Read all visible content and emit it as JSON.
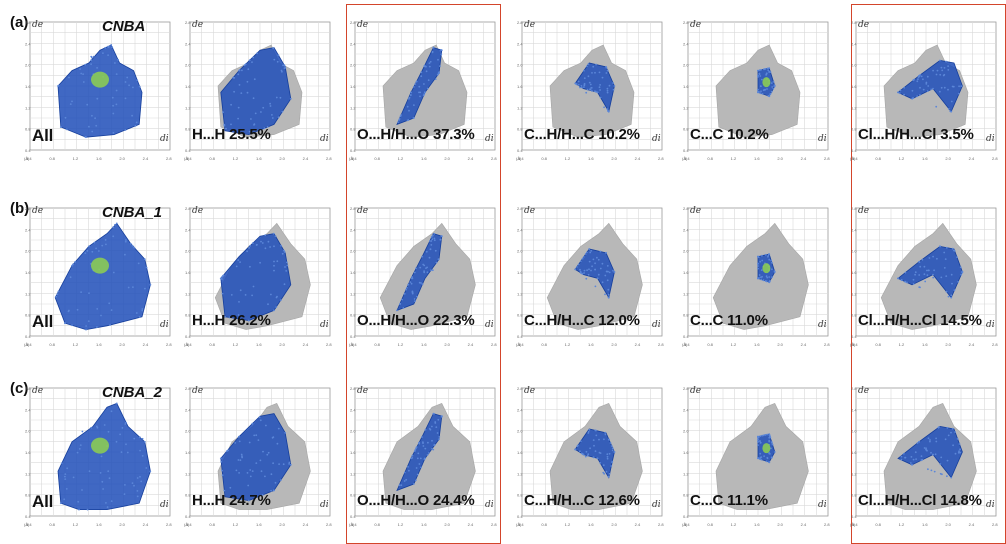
{
  "colors": {
    "frame": "#d3452b",
    "grid": "#d9d9d9",
    "cloud": "#b8b8b8",
    "highlight": "#1f4eb8",
    "hot": "#8fd14f"
  },
  "axis": {
    "x_label": "di",
    "y_label": "de",
    "x_ticks": [
      "0.4",
      "0.6",
      "0.8",
      "1.0",
      "1.2",
      "1.4",
      "1.6",
      "1.8",
      "2.0",
      "2.2",
      "2.4",
      "2.6",
      "2.8"
    ],
    "y_ticks": [
      "2.8",
      "2.6",
      "2.4",
      "2.2",
      "2.0",
      "1.8",
      "1.6",
      "1.4",
      "1.2",
      "1.0",
      "0.8",
      "0.6",
      "0.4"
    ],
    "corner": "(Å)"
  },
  "rows": [
    {
      "tag": "(a)",
      "name": "CNBA",
      "panels": [
        {
          "label": "All",
          "contact": "All",
          "percent": null
        },
        {
          "label": "H...H 25.5%",
          "contact": "H...H",
          "percent": 25.5
        },
        {
          "label": "O...H/H...O 37.3%",
          "contact": "O...H/H...O",
          "percent": 37.3
        },
        {
          "label": "C...H/H...C 10.2%",
          "contact": "C...H/H...C",
          "percent": 10.2
        },
        {
          "label": "C...C 10.2%",
          "contact": "C...C",
          "percent": 10.2
        },
        {
          "label": "Cl...H/H...Cl 3.5%",
          "contact": "Cl...H/H...Cl",
          "percent": 3.5
        }
      ]
    },
    {
      "tag": "(b)",
      "name": "CNBA_1",
      "panels": [
        {
          "label": "All",
          "contact": "All",
          "percent": null
        },
        {
          "label": "H...H 26.2%",
          "contact": "H...H",
          "percent": 26.2
        },
        {
          "label": "O...H/H...O 22.3%",
          "contact": "O...H/H...O",
          "percent": 22.3
        },
        {
          "label": "C...H/H...C 12.0%",
          "contact": "C...H/H...C",
          "percent": 12.0
        },
        {
          "label": "C...C 11.0%",
          "contact": "C...C",
          "percent": 11.0
        },
        {
          "label": "Cl...H/H...Cl 14.5%",
          "contact": "Cl...H/H...Cl",
          "percent": 14.5
        }
      ]
    },
    {
      "tag": "(c)",
      "name": "CNBA_2",
      "panels": [
        {
          "label": "All",
          "contact": "All",
          "percent": null
        },
        {
          "label": "H...H 24.7%",
          "contact": "H...H",
          "percent": 24.7
        },
        {
          "label": "O...H/H...O 24.4%",
          "contact": "O...H/H...O",
          "percent": 24.4
        },
        {
          "label": "C...H/H...C 12.6%",
          "contact": "C...H/H...C",
          "percent": 12.6
        },
        {
          "label": "C...C 11.1%",
          "contact": "C...C",
          "percent": 11.1
        },
        {
          "label": "Cl...H/H...Cl 14.8%",
          "contact": "Cl...H/H...Cl",
          "percent": 14.8
        }
      ]
    }
  ],
  "chart_data": {
    "type": "scatter",
    "title": "",
    "xlabel": "di",
    "ylabel": "de",
    "xlim": [
      0.4,
      2.8
    ],
    "ylim": [
      0.4,
      2.8
    ],
    "grid": true,
    "series": [
      {
        "name": "CNBA",
        "categories": [
          "H...H",
          "O...H/H...O",
          "C...H/H...C",
          "C...C",
          "Cl...H/H...Cl"
        ],
        "values": [
          25.5,
          37.3,
          10.2,
          10.2,
          3.5
        ]
      },
      {
        "name": "CNBA_1",
        "categories": [
          "H...H",
          "O...H/H...O",
          "C...H/H...C",
          "C...C",
          "Cl...H/H...Cl"
        ],
        "values": [
          26.2,
          22.3,
          12.0,
          11.0,
          14.5
        ]
      },
      {
        "name": "CNBA_2",
        "categories": [
          "H...H",
          "O...H/H...O",
          "C...H/H...C",
          "C...C",
          "Cl...H/H...Cl"
        ],
        "values": [
          24.7,
          24.4,
          12.6,
          11.1,
          14.8
        ]
      }
    ]
  }
}
